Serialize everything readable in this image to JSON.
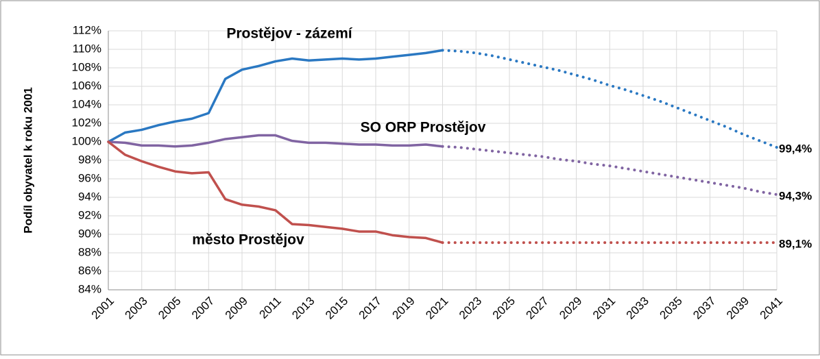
{
  "chart_data": {
    "type": "line",
    "y_label": "Podíl obyvatel k roku 2001",
    "x": [
      2001,
      2002,
      2003,
      2004,
      2005,
      2006,
      2007,
      2008,
      2009,
      2010,
      2011,
      2012,
      2013,
      2014,
      2015,
      2016,
      2017,
      2018,
      2019,
      2020,
      2021,
      2022,
      2023,
      2024,
      2025,
      2026,
      2027,
      2028,
      2029,
      2030,
      2031,
      2032,
      2033,
      2034,
      2035,
      2036,
      2037,
      2038,
      2039,
      2040,
      2041
    ],
    "xlim": [
      2001,
      2041
    ],
    "xticks": [
      2001,
      2003,
      2005,
      2007,
      2009,
      2011,
      2013,
      2015,
      2017,
      2019,
      2021,
      2023,
      2025,
      2027,
      2029,
      2031,
      2033,
      2035,
      2037,
      2039,
      2041
    ],
    "ylim": [
      84,
      112
    ],
    "yticks": [
      {
        "value": 84,
        "label": "84%"
      },
      {
        "value": 86,
        "label": "86%"
      },
      {
        "value": 88,
        "label": "88%"
      },
      {
        "value": 90,
        "label": "90%"
      },
      {
        "value": 92,
        "label": "92%"
      },
      {
        "value": 94,
        "label": "94%"
      },
      {
        "value": 96,
        "label": "96%"
      },
      {
        "value": 98,
        "label": "98%"
      },
      {
        "value": 100,
        "label": "100%"
      },
      {
        "value": 102,
        "label": "102%"
      },
      {
        "value": 104,
        "label": "104%"
      },
      {
        "value": 106,
        "label": "106%"
      },
      {
        "value": 108,
        "label": "108%"
      },
      {
        "value": 110,
        "label": "110%"
      },
      {
        "value": 112,
        "label": "112%"
      }
    ],
    "grid": true,
    "series": [
      {
        "name": "Prostějov - zázemí",
        "color": "#2a78c2",
        "style": "solid",
        "values": [
          100,
          101.0,
          101.3,
          101.8,
          102.2,
          102.5,
          103.1,
          106.8,
          107.8,
          108.2,
          108.7,
          109.0,
          108.8,
          108.9,
          109.0,
          108.9,
          109.0,
          109.2,
          109.4,
          109.6,
          109.9,
          null,
          null,
          null,
          null,
          null,
          null,
          null,
          null,
          null,
          null,
          null,
          null,
          null,
          null,
          null,
          null,
          null,
          null,
          null,
          null
        ]
      },
      {
        "color": "#2a78c2",
        "style": "dotted",
        "values": [
          null,
          null,
          null,
          null,
          null,
          null,
          null,
          null,
          null,
          null,
          null,
          null,
          null,
          null,
          null,
          null,
          null,
          null,
          null,
          null,
          109.9,
          109.8,
          109.6,
          109.3,
          108.9,
          108.5,
          108.1,
          107.7,
          107.2,
          106.7,
          106.1,
          105.6,
          105.0,
          104.4,
          103.7,
          103.0,
          102.3,
          101.6,
          100.8,
          100.1,
          99.4
        ],
        "value_labels": [
          null,
          null,
          null,
          null,
          null,
          null,
          null,
          null,
          null,
          null,
          null,
          null,
          null,
          null,
          null,
          null,
          null,
          null,
          null,
          null,
          null,
          null,
          null,
          null,
          null,
          null,
          null,
          null,
          null,
          null,
          null,
          null,
          null,
          null,
          null,
          null,
          null,
          null,
          null,
          null,
          "99,4%"
        ]
      },
      {
        "name": "SO ORP Prostějov",
        "color": "#8064a2",
        "style": "solid",
        "values": [
          100,
          99.9,
          99.6,
          99.6,
          99.5,
          99.6,
          99.9,
          100.3,
          100.5,
          100.7,
          100.7,
          100.1,
          99.9,
          99.9,
          99.8,
          99.7,
          99.7,
          99.6,
          99.6,
          99.7,
          99.5,
          null,
          null,
          null,
          null,
          null,
          null,
          null,
          null,
          null,
          null,
          null,
          null,
          null,
          null,
          null,
          null,
          null,
          null,
          null,
          null
        ]
      },
      {
        "color": "#8064a2",
        "style": "dotted",
        "values": [
          null,
          null,
          null,
          null,
          null,
          null,
          null,
          null,
          null,
          null,
          null,
          null,
          null,
          null,
          null,
          null,
          null,
          null,
          null,
          null,
          99.5,
          99.4,
          99.2,
          99.0,
          98.8,
          98.6,
          98.4,
          98.1,
          97.9,
          97.6,
          97.4,
          97.1,
          96.8,
          96.5,
          96.2,
          95.9,
          95.6,
          95.3,
          95.0,
          94.6,
          94.3
        ],
        "value_labels": [
          null,
          null,
          null,
          null,
          null,
          null,
          null,
          null,
          null,
          null,
          null,
          null,
          null,
          null,
          null,
          null,
          null,
          null,
          null,
          null,
          null,
          null,
          null,
          null,
          null,
          null,
          null,
          null,
          null,
          null,
          null,
          null,
          null,
          null,
          null,
          null,
          null,
          null,
          null,
          null,
          "94,3%"
        ]
      },
      {
        "name": "město Prostějov",
        "color": "#c0504d",
        "style": "solid",
        "values": [
          100,
          98.6,
          97.9,
          97.3,
          96.8,
          96.6,
          96.7,
          93.8,
          93.2,
          93.0,
          92.6,
          91.1,
          91.0,
          90.8,
          90.6,
          90.3,
          90.3,
          89.9,
          89.7,
          89.6,
          89.1,
          null,
          null,
          null,
          null,
          null,
          null,
          null,
          null,
          null,
          null,
          null,
          null,
          null,
          null,
          null,
          null,
          null,
          null,
          null,
          null
        ]
      },
      {
        "color": "#c0504d",
        "style": "dotted",
        "values": [
          null,
          null,
          null,
          null,
          null,
          null,
          null,
          null,
          null,
          null,
          null,
          null,
          null,
          null,
          null,
          null,
          null,
          null,
          null,
          null,
          89.1,
          89.1,
          89.1,
          89.1,
          89.1,
          89.1,
          89.1,
          89.1,
          89.1,
          89.1,
          89.1,
          89.1,
          89.1,
          89.1,
          89.1,
          89.1,
          89.1,
          89.1,
          89.1,
          89.1,
          89.1
        ],
        "value_labels": [
          null,
          null,
          null,
          null,
          null,
          null,
          null,
          null,
          null,
          null,
          null,
          null,
          null,
          null,
          null,
          null,
          null,
          null,
          null,
          null,
          null,
          null,
          null,
          null,
          null,
          null,
          null,
          null,
          null,
          null,
          null,
          null,
          null,
          null,
          null,
          null,
          null,
          null,
          null,
          null,
          "89,1%"
        ]
      }
    ]
  }
}
